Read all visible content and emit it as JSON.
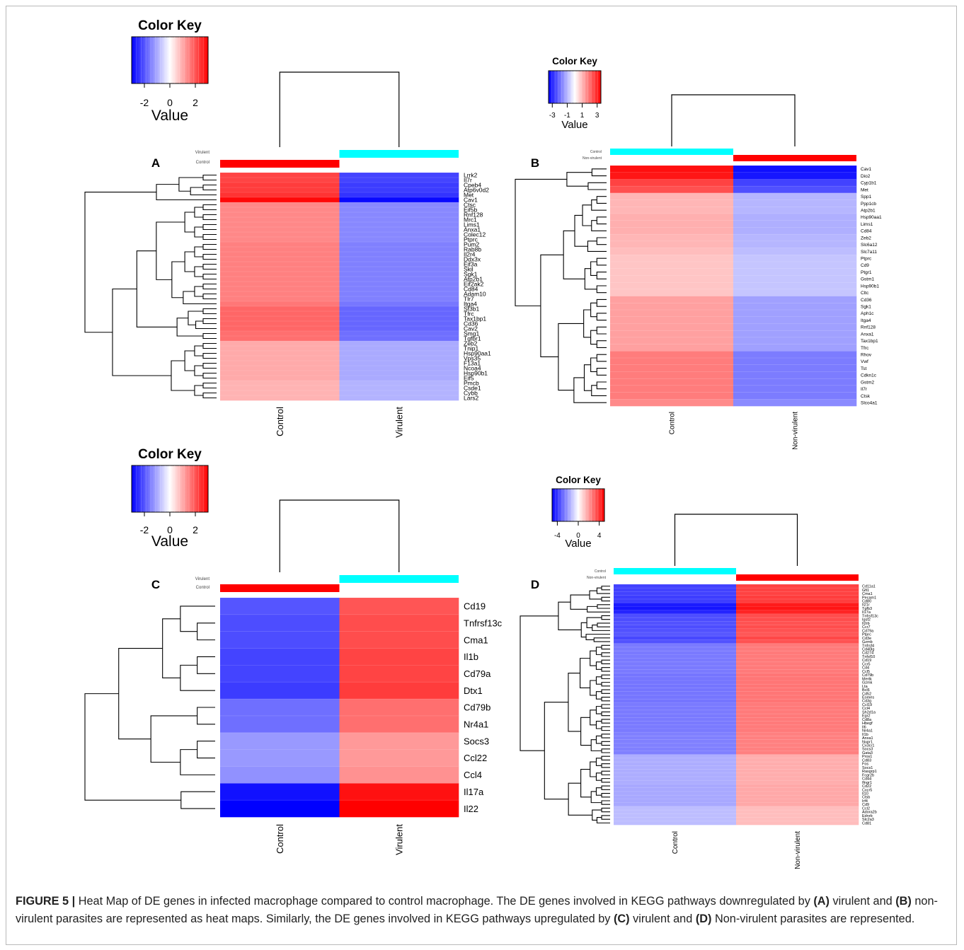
{
  "caption": {
    "figure_label": "FIGURE 5 |",
    "text1": " Heat Map of DE genes in infected macrophage compared to control macrophage. The DE genes involved in KEGG pathways downregulated by ",
    "a_label": "(A)",
    "text2": " virulent and ",
    "b_label": "(B)",
    "text3": " non-virulent parasites are represented as heat maps. Similarly, the DE genes involved in KEGG pathways upregulated by ",
    "c_label": "(C)",
    "text4": " virulent and ",
    "d_label": "(D)",
    "text5": " Non-virulent parasites are represented."
  },
  "colors": {
    "low": "#0000ff",
    "mid": "#ffffff",
    "high": "#ff0000",
    "cyan_bar": "#00ffff",
    "red_bar": "#ff0000"
  },
  "chart_data": [
    {
      "type": "heatmap",
      "panel": "A",
      "color_key": {
        "title": "Color Key",
        "xlabel": "Value",
        "ticks": [
          "-2",
          "0",
          "2"
        ],
        "range": [
          -3,
          3
        ]
      },
      "columns": [
        "Control",
        "Virulent"
      ],
      "side_legend": [
        "Virulent",
        "Control"
      ],
      "column_bar_colors": [
        "red",
        "cyan"
      ],
      "rows": [
        "Lrrk2",
        "Il7r",
        "Cpeb4",
        "Atp6v0d2",
        "Met",
        "Cav1",
        "Ctsc",
        "Eif5b",
        "Rnf128",
        "Mrc1",
        "Lims1",
        "Anxa1",
        "Colec12",
        "Ptprc",
        "Pum2",
        "Rab8b",
        "Il2r4",
        "Ddx3x",
        "Eif3a",
        "Skil",
        "Sgk1",
        "Atp2b1",
        "Eif2ak2",
        "Cd84",
        "Adam10",
        "Tlr7",
        "Itga4",
        "Sf3b1",
        "Tfrc",
        "Tax1bp1",
        "Cd36",
        "Cav2",
        "Smg1",
        "Tgfbr1",
        "Zeb2",
        "Tnip1",
        "Hsp90aa1",
        "Vps35",
        "F13a1",
        "Ncoa4",
        "Hsp90b1",
        "Eif5",
        "Pmcb",
        "Csde1",
        "Cybb",
        "Lars2"
      ],
      "values": [
        [
          2.2,
          -2.2
        ],
        [
          2.2,
          -2.2
        ],
        [
          2.3,
          -2.3
        ],
        [
          2.3,
          -2.3
        ],
        [
          2.4,
          -2.4
        ],
        [
          2.9,
          -2.9
        ],
        [
          1.4,
          -1.4
        ],
        [
          1.4,
          -1.4
        ],
        [
          1.4,
          -1.4
        ],
        [
          1.4,
          -1.4
        ],
        [
          1.4,
          -1.4
        ],
        [
          1.4,
          -1.4
        ],
        [
          1.4,
          -1.4
        ],
        [
          1.4,
          -1.4
        ],
        [
          1.5,
          -1.5
        ],
        [
          1.5,
          -1.5
        ],
        [
          1.5,
          -1.5
        ],
        [
          1.5,
          -1.5
        ],
        [
          1.5,
          -1.5
        ],
        [
          1.5,
          -1.5
        ],
        [
          1.5,
          -1.5
        ],
        [
          1.5,
          -1.5
        ],
        [
          1.5,
          -1.5
        ],
        [
          1.5,
          -1.5
        ],
        [
          1.5,
          -1.5
        ],
        [
          1.5,
          -1.5
        ],
        [
          1.6,
          -1.6
        ],
        [
          1.8,
          -1.8
        ],
        [
          1.8,
          -1.8
        ],
        [
          1.8,
          -1.8
        ],
        [
          1.8,
          -1.8
        ],
        [
          1.8,
          -1.8
        ],
        [
          1.7,
          -1.7
        ],
        [
          1.7,
          -1.7
        ],
        [
          1.0,
          -1.0
        ],
        [
          1.0,
          -1.0
        ],
        [
          1.0,
          -1.0
        ],
        [
          1.0,
          -1.0
        ],
        [
          1.0,
          -1.0
        ],
        [
          1.0,
          -1.0
        ],
        [
          1.0,
          -1.0
        ],
        [
          1.0,
          -1.0
        ],
        [
          0.9,
          -0.9
        ],
        [
          0.9,
          -0.9
        ],
        [
          0.9,
          -0.9
        ],
        [
          0.9,
          -0.9
        ]
      ]
    },
    {
      "type": "heatmap",
      "panel": "B",
      "color_key": {
        "title": "Color Key",
        "xlabel": "Value",
        "ticks": [
          "-3",
          "-1",
          "1",
          "3"
        ],
        "range": [
          -3.5,
          3.5
        ]
      },
      "columns": [
        "Control",
        "Non-virulent"
      ],
      "side_legend": [
        "Control",
        "Non-virulent"
      ],
      "column_bar_colors": [
        "cyan",
        "red"
      ],
      "rows": [
        "Cav1",
        "Dio2",
        "Cyp1b1",
        "Met",
        "Spp1",
        "Ppp1cb",
        "Atp2b1",
        "Hsp90aa1",
        "Lims1",
        "Cd84",
        "Zeb2",
        "Slc6a12",
        "Slc7a11",
        "Ptprc",
        "Cd9",
        "Ptgr1",
        "Gstm1",
        "Hsp90b1",
        "Cltc",
        "Cd36",
        "Sgk1",
        "Aph1c",
        "Itga4",
        "Rnf128",
        "Anxa1",
        "Tax1bp1",
        "Tfrc",
        "Rhov",
        "Vwf",
        "Tst",
        "Cdkn1c",
        "Gstm2",
        "Il7r",
        "Ctsk",
        "Slco4a1"
      ],
      "values": [
        [
          3.3,
          -3.3
        ],
        [
          3.2,
          -3.2
        ],
        [
          2.6,
          -2.6
        ],
        [
          2.4,
          -2.4
        ],
        [
          1.0,
          -1.0
        ],
        [
          1.0,
          -1.0
        ],
        [
          1.0,
          -1.0
        ],
        [
          1.1,
          -1.1
        ],
        [
          1.1,
          -1.1
        ],
        [
          1.1,
          -1.1
        ],
        [
          1.0,
          -1.0
        ],
        [
          1.0,
          -1.0
        ],
        [
          0.9,
          -0.9
        ],
        [
          0.8,
          -0.8
        ],
        [
          0.8,
          -0.8
        ],
        [
          0.8,
          -0.8
        ],
        [
          0.8,
          -0.8
        ],
        [
          0.8,
          -0.8
        ],
        [
          0.8,
          -0.8
        ],
        [
          1.3,
          -1.3
        ],
        [
          1.3,
          -1.3
        ],
        [
          1.3,
          -1.3
        ],
        [
          1.3,
          -1.3
        ],
        [
          1.3,
          -1.3
        ],
        [
          1.3,
          -1.3
        ],
        [
          1.3,
          -1.3
        ],
        [
          1.3,
          -1.3
        ],
        [
          1.8,
          -1.8
        ],
        [
          1.8,
          -1.8
        ],
        [
          1.8,
          -1.8
        ],
        [
          1.8,
          -1.8
        ],
        [
          1.8,
          -1.8
        ],
        [
          1.8,
          -1.8
        ],
        [
          1.8,
          -1.8
        ],
        [
          1.6,
          -1.6
        ]
      ]
    },
    {
      "type": "heatmap",
      "panel": "C",
      "color_key": {
        "title": "Color Key",
        "xlabel": "Value",
        "ticks": [
          "-2",
          "0",
          "2"
        ],
        "range": [
          -3,
          3
        ]
      },
      "columns": [
        "Control",
        "Virulent"
      ],
      "side_legend": [
        "Virulent",
        "Control"
      ],
      "column_bar_colors": [
        "red",
        "cyan"
      ],
      "rows": [
        "Cd19",
        "Tnfrsf13c",
        "Cma1",
        "Il1b",
        "Cd79a",
        "Dtx1",
        "Cd79b",
        "Nr4a1",
        "Socs3",
        "Ccl22",
        "Ccl4",
        "Il17a",
        "Il22"
      ],
      "values": [
        [
          -2.0,
          2.0
        ],
        [
          -2.1,
          2.1
        ],
        [
          -2.1,
          2.1
        ],
        [
          -2.2,
          2.2
        ],
        [
          -2.2,
          2.2
        ],
        [
          -2.3,
          2.3
        ],
        [
          -1.7,
          1.7
        ],
        [
          -1.7,
          1.7
        ],
        [
          -1.2,
          1.2
        ],
        [
          -1.2,
          1.2
        ],
        [
          -1.3,
          1.3
        ],
        [
          -2.8,
          2.8
        ],
        [
          -3.0,
          3.0
        ]
      ]
    },
    {
      "type": "heatmap",
      "panel": "D",
      "color_key": {
        "title": "Color Key",
        "xlabel": "Value",
        "ticks": [
          "-4",
          "0",
          "4"
        ],
        "range": [
          -5,
          5
        ]
      },
      "columns": [
        "Control",
        "Non-virulent"
      ],
      "side_legend": [
        "Control",
        "Non-virulent"
      ],
      "column_bar_colors": [
        "cyan",
        "red"
      ],
      "rows": [
        "Cd11a1",
        "Gfi1",
        "Cma1",
        "Pecam1",
        "Cd80",
        "Il21r",
        "Tgfb3",
        "Il17a",
        "Tnfrsf13c",
        "Igsf2",
        "Il2rb",
        "Ccr7",
        "Cd79a",
        "Ptprc",
        "Cd3e",
        "Gzmb",
        "Tnfrsf4",
        "Cd40lg",
        "Cd274",
        "Tnfsf10",
        "Cd19",
        "Ccr5",
        "Cd4",
        "Ccl5",
        "Cd79b",
        "Mertk",
        "Gzmk",
        "Lta",
        "Bcl6",
        "Cd52",
        "Eomes",
        "Cd3g",
        "Ccl19",
        "Ccl4",
        "Sh2d1a",
        "Egr2",
        "Cd8a",
        "Hbegf",
        "Il6",
        "Nr4a1",
        "Il1b",
        "Anxa1",
        "Nupr1",
        "Cx3cr1",
        "Socs3",
        "Gata3",
        "Pros1",
        "Cd83",
        "Fos",
        "Socs1",
        "Rasgrp1",
        "Fcgr2b",
        "Cd44",
        "Ifngr1",
        "Cd22",
        "Cxcr5",
        "Il10",
        "Ctsb",
        "Irf4",
        "Cd9",
        "Ccl2",
        "Adora2b",
        "Ednrb",
        "Slc2a3",
        "Cd81"
      ],
      "values": [
        [
          -3.7,
          3.7
        ],
        [
          -3.7,
          3.7
        ],
        [
          -3.7,
          3.7
        ],
        [
          -3.8,
          3.8
        ],
        [
          -3.8,
          3.8
        ],
        [
          -4.5,
          4.5
        ],
        [
          -4.6,
          4.6
        ],
        [
          -4.3,
          4.3
        ],
        [
          -3.5,
          3.5
        ],
        [
          -3.5,
          3.5
        ],
        [
          -3.4,
          3.4
        ],
        [
          -3.5,
          3.5
        ],
        [
          -3.4,
          3.4
        ],
        [
          -3.3,
          3.3
        ],
        [
          -3.6,
          3.6
        ],
        [
          -3.4,
          3.4
        ],
        [
          -2.6,
          2.6
        ],
        [
          -2.6,
          2.6
        ],
        [
          -2.6,
          2.6
        ],
        [
          -2.6,
          2.6
        ],
        [
          -2.6,
          2.6
        ],
        [
          -2.6,
          2.6
        ],
        [
          -2.6,
          2.6
        ],
        [
          -2.6,
          2.6
        ],
        [
          -2.7,
          2.7
        ],
        [
          -2.7,
          2.7
        ],
        [
          -2.7,
          2.7
        ],
        [
          -2.7,
          2.7
        ],
        [
          -2.7,
          2.7
        ],
        [
          -2.7,
          2.7
        ],
        [
          -2.7,
          2.7
        ],
        [
          -2.7,
          2.7
        ],
        [
          -2.6,
          2.6
        ],
        [
          -2.6,
          2.6
        ],
        [
          -2.6,
          2.6
        ],
        [
          -2.6,
          2.6
        ],
        [
          -2.6,
          2.6
        ],
        [
          -2.6,
          2.6
        ],
        [
          -2.6,
          2.6
        ],
        [
          -2.6,
          2.6
        ],
        [
          -2.5,
          2.5
        ],
        [
          -2.5,
          2.5
        ],
        [
          -2.5,
          2.5
        ],
        [
          -2.5,
          2.5
        ],
        [
          -2.5,
          2.5
        ],
        [
          -2.5,
          2.5
        ],
        [
          -1.6,
          1.6
        ],
        [
          -1.6,
          1.6
        ],
        [
          -1.6,
          1.6
        ],
        [
          -1.6,
          1.6
        ],
        [
          -1.6,
          1.6
        ],
        [
          -1.6,
          1.6
        ],
        [
          -1.6,
          1.6
        ],
        [
          -1.6,
          1.6
        ],
        [
          -1.7,
          1.7
        ],
        [
          -1.7,
          1.7
        ],
        [
          -1.7,
          1.7
        ],
        [
          -1.7,
          1.7
        ],
        [
          -1.7,
          1.7
        ],
        [
          -1.7,
          1.7
        ],
        [
          -1.3,
          1.3
        ],
        [
          -1.3,
          1.3
        ],
        [
          -1.3,
          1.3
        ],
        [
          -1.3,
          1.3
        ],
        [
          -1.3,
          1.3
        ]
      ]
    }
  ]
}
